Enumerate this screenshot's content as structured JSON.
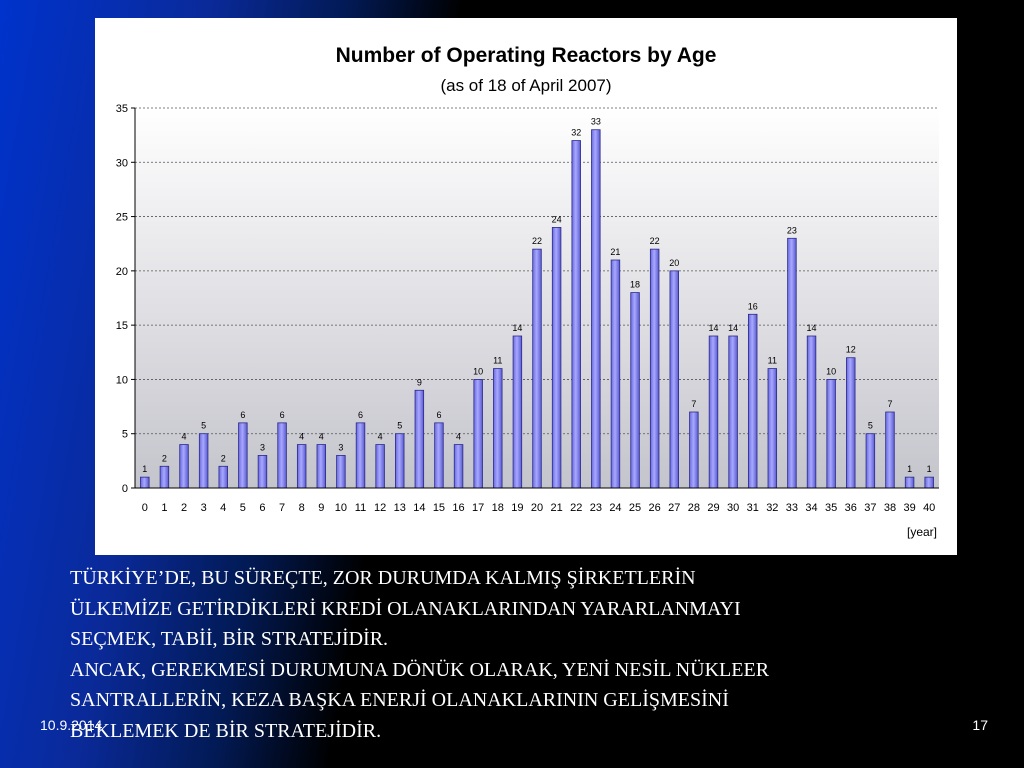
{
  "slide": {
    "paragraphs": [
      [
        "TÜRKİYE’DE, BU SÜREÇTE, ZOR DURUMDA KALMIŞ ŞİRKETLERİN",
        "ÜLKEMİZE GETİRDİKLERİ KREDİ OLANAKLARINDAN YARARLANMAYI",
        "SEÇMEK, TABİİ, BİR STRATEJİDİR."
      ],
      [
        "ANCAK, GEREKMESİ DURUMUNA DÖNÜK OLARAK, YENİ NESİL NÜKLEER",
        "SANTRALLERİN, KEZA BAŞKA ENERJİ OLANAKLARININ GELİŞMESİNİ",
        "BEKLEMEK DE BİR STRATEJİDİR."
      ]
    ],
    "footer_date": "10.9.2014",
    "page_number": "17",
    "colors": {
      "background": "#000000",
      "accent": "#0033cc",
      "text": "#ffffff"
    }
  },
  "chart_data": {
    "type": "bar",
    "title": "Number of Operating Reactors by Age",
    "subtitle": "(as of 18 of April 2007)",
    "xlabel": "[year]",
    "ylabel": "",
    "categories": [
      "0",
      "1",
      "2",
      "3",
      "4",
      "5",
      "6",
      "7",
      "8",
      "9",
      "10",
      "11",
      "12",
      "13",
      "14",
      "15",
      "16",
      "17",
      "18",
      "19",
      "20",
      "21",
      "22",
      "23",
      "24",
      "25",
      "26",
      "27",
      "28",
      "29",
      "30",
      "31",
      "32",
      "33",
      "34",
      "35",
      "36",
      "37",
      "38",
      "39",
      "40"
    ],
    "values": [
      1,
      2,
      4,
      5,
      2,
      6,
      3,
      6,
      4,
      4,
      3,
      6,
      4,
      5,
      9,
      6,
      4,
      10,
      11,
      14,
      22,
      24,
      32,
      33,
      21,
      18,
      22,
      20,
      7,
      14,
      14,
      16,
      11,
      23,
      14,
      10,
      12,
      5,
      7,
      1,
      1
    ],
    "ylim": [
      0,
      35
    ],
    "yticks": [
      0,
      5,
      10,
      15,
      20,
      25,
      30,
      35
    ],
    "grid": true,
    "legend": "none",
    "bar_color": "#8f8ff0",
    "bar_edge_color": "#2a2a8a"
  }
}
